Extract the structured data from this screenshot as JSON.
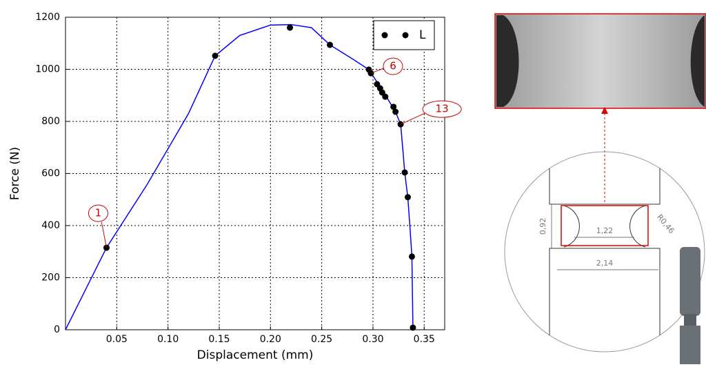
{
  "chart_data": {
    "type": "line",
    "xlabel": "Displacement (mm)",
    "ylabel": "Force (N)",
    "xlim": [
      0,
      0.37
    ],
    "ylim": [
      0,
      1200
    ],
    "xticks": [
      0.05,
      {
        "value": 0.1,
        "label": "0.10"
      },
      0.15,
      {
        "value": 0.2,
        "label": "0.20"
      },
      0.25,
      {
        "value": 0.3,
        "label": "0.30"
      },
      0.35
    ],
    "yticks": [
      0,
      200,
      400,
      600,
      800,
      1000,
      1200
    ],
    "grid": true,
    "legend": "upper right",
    "series": [
      {
        "color": "#0000ff",
        "x": [
          0,
          0.04,
          0.08,
          0.12,
          0.146,
          0.17,
          0.2,
          0.22,
          0.24,
          0.258,
          0.28,
          0.296,
          0.31,
          0.322,
          0.327,
          0.329,
          0.331,
          0.334,
          0.336,
          0.338,
          0.339
        ],
        "values": [
          0,
          315,
          560,
          830,
          1052,
          1130,
          1170,
          1172,
          1160,
          1094,
          1040,
          999,
          915,
          837,
          789,
          700,
          604,
          509,
          400,
          281,
          8
        ]
      },
      {
        "name": "L",
        "color": "#000000",
        "marker": "circle",
        "x": [
          0.04,
          0.146,
          0.219,
          0.258,
          0.296,
          0.298,
          0.304,
          0.307,
          0.309,
          0.312,
          0.32,
          0.322,
          0.327,
          0.331,
          0.334,
          0.338,
          0.339
        ],
        "values": [
          315,
          1052,
          1160,
          1094,
          999,
          985,
          943,
          927,
          911,
          895,
          856,
          837,
          789,
          604,
          509,
          281,
          8
        ]
      }
    ],
    "annotations": [
      "1",
      "6",
      "13"
    ]
  },
  "diagram": {
    "dimensions": [
      "0,92",
      "1,22",
      "R0,46",
      "2,14"
    ]
  }
}
